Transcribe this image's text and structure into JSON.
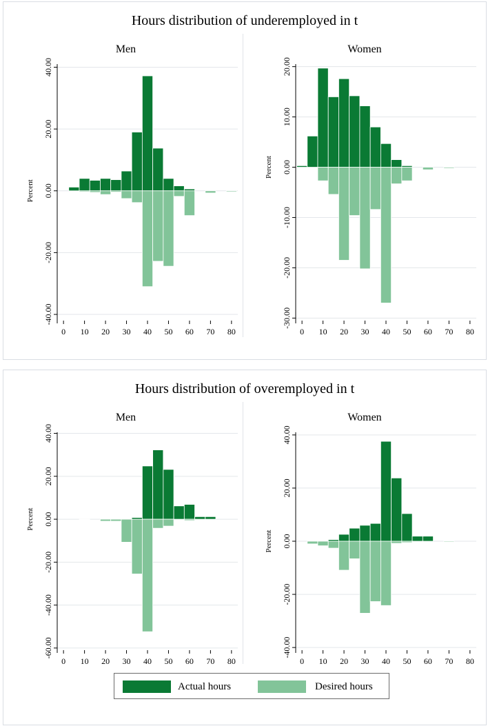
{
  "colors": {
    "actual": "#0a7a34",
    "desired": "#82c499",
    "grid": "#e3e6ea",
    "bar_edge": "#ffffff"
  },
  "legend": {
    "actual_label": "Actual hours",
    "desired_label": "Desired hours"
  },
  "figures": [
    {
      "title": "Hours distribution of underemployed in t"
    },
    {
      "title": "Hours distribution of overemployed in t"
    }
  ],
  "chart_data": [
    {
      "type": "bar",
      "figure": 0,
      "panel_title": "Men",
      "ylabel": "Percent",
      "x": [
        5,
        10,
        15,
        20,
        25,
        30,
        35,
        40,
        45,
        50,
        55,
        60,
        65,
        70,
        75,
        80
      ],
      "xticks": [
        0,
        10,
        20,
        30,
        40,
        50,
        60,
        70,
        80
      ],
      "xlim": [
        -3,
        83
      ],
      "yticks": [
        -40,
        -20,
        0,
        20,
        40
      ],
      "ytick_labels": [
        "-40.00",
        "-20.00",
        "0.00",
        "20.00",
        "40.00"
      ],
      "ylim": [
        -42,
        41
      ],
      "series": [
        {
          "name": "Actual hours",
          "values": [
            1.2,
            4.0,
            3.4,
            4.0,
            3.6,
            6.4,
            19.0,
            37.2,
            13.8,
            4.0,
            1.6,
            0.6,
            0,
            0,
            0,
            0
          ]
        },
        {
          "name": "Desired hours",
          "values": [
            0,
            -0.3,
            -0.5,
            -1.2,
            -0.4,
            -2.5,
            -3.8,
            -31.0,
            -22.8,
            -24.4,
            -1.8,
            -8.0,
            0,
            -0.7,
            0,
            -0.3
          ]
        }
      ]
    },
    {
      "type": "bar",
      "figure": 0,
      "panel_title": "Women",
      "ylabel": "Percent",
      "x": [
        0,
        5,
        10,
        15,
        20,
        25,
        30,
        35,
        40,
        45,
        50,
        55,
        60,
        65,
        70,
        75,
        80
      ],
      "xticks": [
        0,
        10,
        20,
        30,
        40,
        50,
        60,
        70,
        80
      ],
      "xlim": [
        -3,
        83
      ],
      "yticks": [
        -30,
        -20,
        -10,
        0,
        10,
        20
      ],
      "ytick_labels": [
        "-30.00",
        "-20.00",
        "-10.00",
        "0.00",
        "10.00",
        "20.00"
      ],
      "ylim": [
        -30.5,
        20.5
      ],
      "series": [
        {
          "name": "Actual hours",
          "values": [
            0.3,
            6.2,
            19.7,
            14.0,
            17.6,
            14.2,
            12.2,
            8.0,
            4.7,
            1.5,
            0.3,
            0,
            0,
            0,
            0,
            0,
            0
          ]
        },
        {
          "name": "Desired hours",
          "values": [
            0,
            0,
            -2.7,
            -5.4,
            -18.5,
            -9.6,
            -20.2,
            -8.4,
            -27.0,
            -3.3,
            -2.7,
            0,
            -0.5,
            0,
            -0.2,
            0,
            0
          ]
        }
      ]
    },
    {
      "type": "bar",
      "figure": 1,
      "panel_title": "Men",
      "ylabel": "Percent",
      "x": [
        0,
        5,
        10,
        15,
        20,
        25,
        30,
        35,
        40,
        45,
        50,
        55,
        60,
        65,
        70,
        75,
        80
      ],
      "xticks": [
        0,
        10,
        20,
        30,
        40,
        50,
        60,
        70,
        80
      ],
      "xlim": [
        -3,
        83
      ],
      "yticks": [
        -60,
        -40,
        -20,
        0,
        20,
        40
      ],
      "ytick_labels": [
        "-60.00",
        "-40.00",
        "-20.00",
        "0.00",
        "20.00",
        "40.00"
      ],
      "ylim": [
        -61,
        40.5
      ],
      "series": [
        {
          "name": "Actual hours",
          "values": [
            0,
            0,
            0,
            0,
            0,
            0,
            0,
            0.8,
            24.8,
            32.3,
            23.2,
            6.2,
            6.9,
            1.2,
            1.2,
            0,
            0
          ]
        },
        {
          "name": "Desired hours",
          "values": [
            0,
            0,
            -0.2,
            0,
            -0.9,
            -0.9,
            -10.7,
            -25.5,
            -52.4,
            -4.2,
            -3.2,
            0,
            -0.6,
            0,
            0,
            0,
            0
          ]
        }
      ]
    },
    {
      "type": "bar",
      "figure": 1,
      "panel_title": "Women",
      "ylabel": "Percent",
      "x": [
        0,
        5,
        10,
        15,
        20,
        25,
        30,
        35,
        40,
        45,
        50,
        55,
        60,
        65,
        70,
        75,
        80
      ],
      "xticks": [
        0,
        10,
        20,
        30,
        40,
        50,
        60,
        70,
        80
      ],
      "xlim": [
        -3,
        83
      ],
      "yticks": [
        -40,
        -20,
        0,
        20,
        40
      ],
      "ytick_labels": [
        "-40.00",
        "-20.00",
        "0.00",
        "20.00",
        "40.00"
      ],
      "ylim": [
        -41,
        41
      ],
      "series": [
        {
          "name": "Actual hours",
          "values": [
            0,
            0,
            0,
            0.6,
            2.6,
            4.9,
            6.0,
            6.7,
            37.6,
            23.8,
            10.4,
            1.9,
            1.9,
            0,
            0,
            0,
            0
          ]
        },
        {
          "name": "Desired hours",
          "values": [
            0,
            -1.0,
            -1.7,
            -2.6,
            -10.9,
            -6.6,
            -27.1,
            -22.7,
            -24.2,
            -0.8,
            -0.5,
            0,
            0,
            0,
            -0.3,
            0,
            0
          ]
        }
      ]
    }
  ]
}
